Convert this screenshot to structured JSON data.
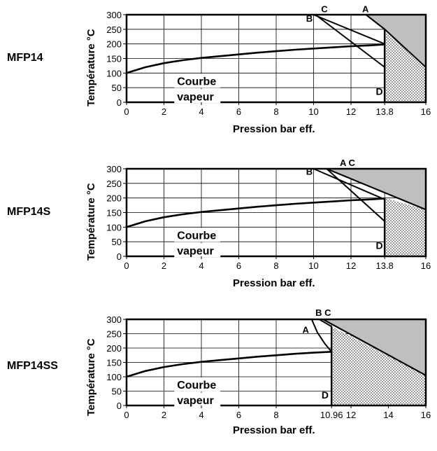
{
  "chart_data": [
    {
      "type": "line",
      "label": "MFP14",
      "xlabel": "Pression bar eff.",
      "ylabel": "Température °C",
      "xlim": [
        0,
        16
      ],
      "ylim": [
        0,
        300
      ],
      "x_ticks": [
        "0",
        "2",
        "4",
        "6",
        "8",
        "10",
        "12",
        "13.8",
        "16"
      ],
      "x_tick_values": [
        0,
        2,
        4,
        6,
        8,
        10,
        12,
        13.8,
        16
      ],
      "y_ticks": [
        0,
        50,
        100,
        150,
        200,
        250,
        300
      ],
      "grid": true,
      "steam_curve": {
        "name": "Courbe vapeur",
        "label_lines": [
          "Courbe",
          "vapeur"
        ],
        "points": [
          [
            0,
            100
          ],
          [
            1,
            120
          ],
          [
            2,
            134
          ],
          [
            3,
            144
          ],
          [
            4,
            152
          ],
          [
            5,
            158
          ],
          [
            6,
            164
          ],
          [
            7,
            170
          ],
          [
            8,
            175
          ],
          [
            9,
            180
          ],
          [
            10,
            184
          ],
          [
            11,
            188
          ],
          [
            12,
            192
          ],
          [
            13,
            195
          ],
          [
            13.8,
            198
          ]
        ]
      },
      "lines": [
        {
          "name": "A",
          "points": [
            [
              12.8,
              300
            ],
            [
              13.8,
              250
            ]
          ],
          "label_at": [
            12.6,
            308
          ]
        },
        {
          "name": "B",
          "points": [
            [
              10,
              300
            ],
            [
              13.8,
              200
            ]
          ],
          "label_at": [
            9.6,
            276
          ]
        },
        {
          "name": "C",
          "points": [
            [
              10.1,
              300
            ],
            [
              13.8,
              120
            ]
          ],
          "label_at": [
            10.4,
            308
          ]
        }
      ],
      "shaded_region": [
        [
          12.8,
          300
        ],
        [
          16,
          300
        ],
        [
          16,
          120
        ],
        [
          13.8,
          250
        ]
      ],
      "dotted_region_x": [
        13.8,
        16
      ],
      "dotted_top": [
        [
          13.8,
          250
        ],
        [
          16,
          120
        ]
      ],
      "d_label": {
        "text": "D",
        "at": [
          13.4,
          20
        ]
      }
    },
    {
      "type": "line",
      "label": "MFP14S",
      "xlabel": "Pression bar eff.",
      "ylabel": "Température °C",
      "xlim": [
        0,
        16
      ],
      "ylim": [
        0,
        300
      ],
      "x_ticks": [
        "0",
        "2",
        "4",
        "6",
        "8",
        "10",
        "12",
        "13.8",
        "16"
      ],
      "x_tick_values": [
        0,
        2,
        4,
        6,
        8,
        10,
        12,
        13.8,
        16
      ],
      "y_ticks": [
        0,
        50,
        100,
        150,
        200,
        250,
        300
      ],
      "grid": true,
      "steam_curve": {
        "name": "Courbe vapeur",
        "label_lines": [
          "Courbe",
          "vapeur"
        ],
        "points": [
          [
            0,
            100
          ],
          [
            1,
            120
          ],
          [
            2,
            134
          ],
          [
            3,
            144
          ],
          [
            4,
            152
          ],
          [
            5,
            158
          ],
          [
            6,
            164
          ],
          [
            7,
            170
          ],
          [
            8,
            175
          ],
          [
            9,
            180
          ],
          [
            10,
            184
          ],
          [
            11,
            188
          ],
          [
            12,
            192
          ],
          [
            13,
            195
          ],
          [
            13.8,
            198
          ]
        ]
      },
      "lines": [
        {
          "name": "A C",
          "points": [
            [
              10.7,
              300
            ],
            [
              16,
              160
            ]
          ],
          "label_at": [
            11.4,
            310
          ]
        },
        {
          "name": "B",
          "points": [
            [
              10,
              300
            ],
            [
              13.8,
              195
            ]
          ],
          "label_at": [
            9.6,
            280
          ]
        },
        {
          "name": "",
          "points": [
            [
              10.7,
              300
            ],
            [
              13.8,
              120
            ]
          ],
          "label_at": null
        }
      ],
      "shaded_region": [
        [
          10.7,
          300
        ],
        [
          16,
          300
        ],
        [
          16,
          160
        ]
      ],
      "dotted_region_x": [
        13.8,
        16
      ],
      "dotted_top": [
        [
          13.8,
          200
        ],
        [
          16,
          160
        ]
      ],
      "d_label": {
        "text": "D",
        "at": [
          13.4,
          20
        ]
      }
    },
    {
      "type": "line",
      "label": "MFP14SS",
      "xlabel": "Pression bar eff.",
      "ylabel": "Température °C",
      "xlim": [
        0,
        16
      ],
      "ylim": [
        0,
        300
      ],
      "x_ticks": [
        "0",
        "2",
        "4",
        "6",
        "8",
        "10.96",
        "12",
        "14",
        "16"
      ],
      "x_tick_values": [
        0,
        2,
        4,
        6,
        8,
        10.96,
        12,
        14,
        16
      ],
      "y_ticks": [
        0,
        50,
        100,
        150,
        200,
        250,
        300
      ],
      "grid": true,
      "steam_curve": {
        "name": "Courbe vapeur",
        "label_lines": [
          "Courbe",
          "vapeur"
        ],
        "points": [
          [
            0,
            100
          ],
          [
            1,
            120
          ],
          [
            2,
            134
          ],
          [
            3,
            144
          ],
          [
            4,
            152
          ],
          [
            5,
            158
          ],
          [
            6,
            164
          ],
          [
            7,
            170
          ],
          [
            8,
            175
          ],
          [
            9,
            180
          ],
          [
            10,
            184
          ],
          [
            10.96,
            187
          ]
        ]
      },
      "lines": [
        {
          "name": "A",
          "points": [
            [
              9.9,
              300
            ],
            [
              10.2,
              255
            ],
            [
              10.6,
              215
            ],
            [
              10.96,
              187
            ]
          ],
          "label_at": [
            9.4,
            252
          ]
        },
        {
          "name": "B C",
          "points": [
            [
              10.3,
              300
            ],
            [
              10.96,
              275
            ]
          ],
          "label_at": [
            10.1,
            312
          ]
        },
        {
          "name": "",
          "points": [
            [
              10.5,
              300
            ],
            [
              16,
              105
            ]
          ],
          "label_at": null
        }
      ],
      "shaded_region": [
        [
          10.5,
          300
        ],
        [
          16,
          300
        ],
        [
          16,
          105
        ]
      ],
      "dotted_region_x": [
        10.96,
        16
      ],
      "dotted_top": [
        [
          10.96,
          275
        ],
        [
          16,
          105
        ]
      ],
      "d_label": {
        "text": "D",
        "at": [
          10.5,
          20
        ]
      }
    }
  ]
}
